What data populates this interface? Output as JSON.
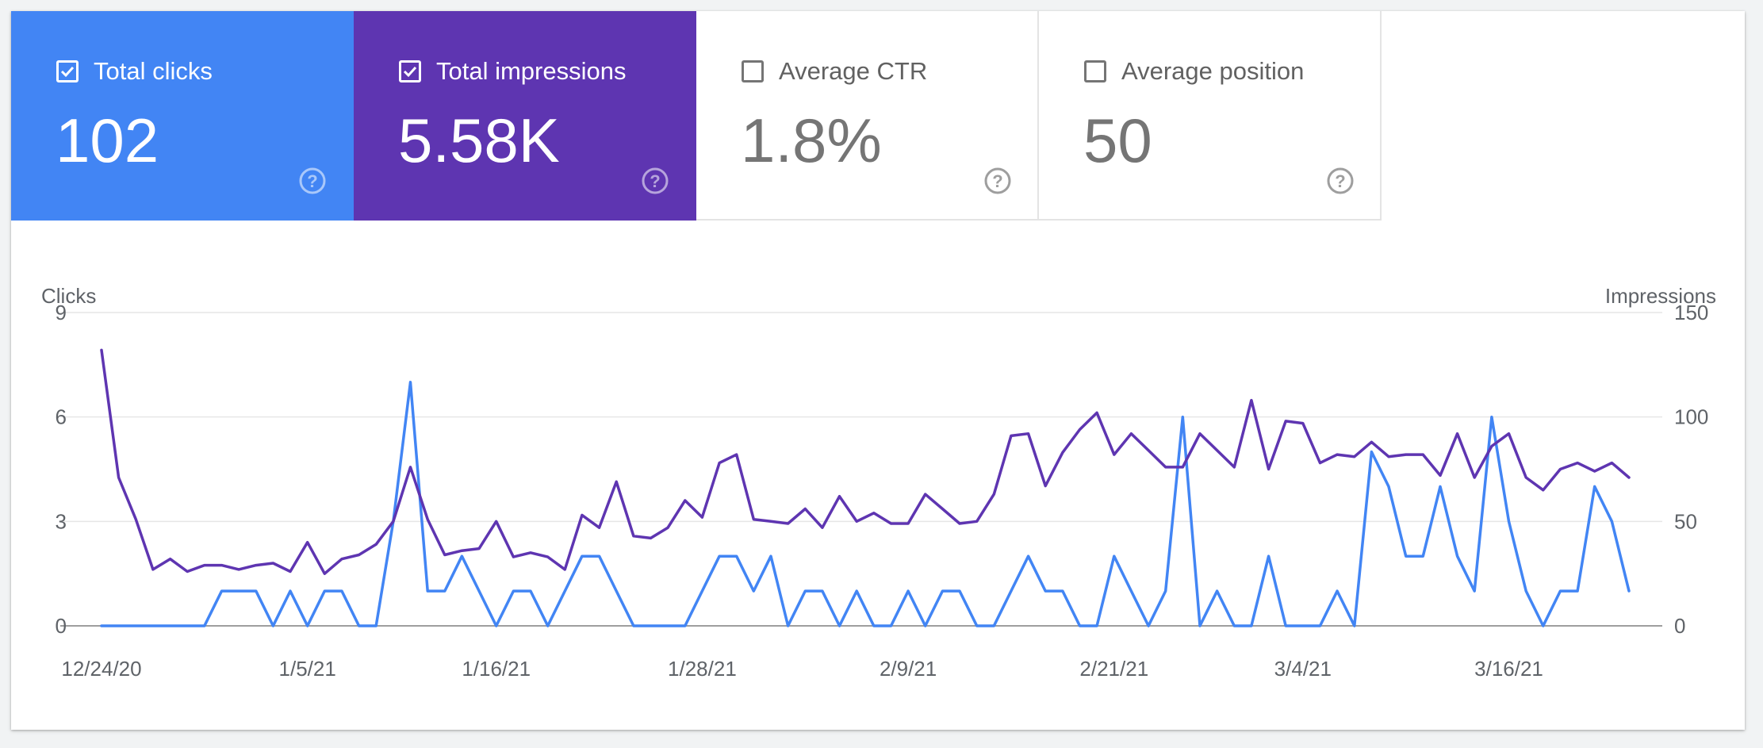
{
  "metrics": [
    {
      "label": "Total clicks",
      "value": "102",
      "checked": true
    },
    {
      "label": "Total impressions",
      "value": "5.58K",
      "checked": true
    },
    {
      "label": "Average CTR",
      "value": "1.8%",
      "checked": false
    },
    {
      "label": "Average position",
      "value": "50",
      "checked": false
    }
  ],
  "colors": {
    "clicks": "#4285f4",
    "impressions": "#5e35b1",
    "grid": "#e6e6e6",
    "baseline": "#9e9e9e"
  },
  "chart_data": {
    "type": "line",
    "grid": true,
    "y_left": {
      "label": "Clicks",
      "range": [
        0,
        9
      ],
      "ticks": [
        0,
        3,
        6,
        9
      ]
    },
    "y_right": {
      "label": "Impressions",
      "range": [
        0,
        150
      ],
      "ticks": [
        0,
        50,
        100,
        150
      ]
    },
    "x_tick_labels": [
      "12/24/20",
      "1/5/21",
      "1/16/21",
      "1/28/21",
      "2/9/21",
      "2/21/21",
      "3/4/21",
      "3/16/21"
    ],
    "x_tick_index": [
      0,
      12,
      23,
      35,
      47,
      59,
      70,
      82
    ],
    "series": [
      {
        "name": "Clicks",
        "axis": "left",
        "values": [
          0,
          0,
          0,
          0,
          0,
          0,
          0,
          1,
          1,
          1,
          0,
          1,
          0,
          1,
          1,
          0,
          0,
          3,
          7,
          1,
          1,
          2,
          1,
          0,
          1,
          1,
          0,
          1,
          2,
          2,
          1,
          0,
          0,
          0,
          0,
          1,
          2,
          2,
          1,
          2,
          0,
          1,
          1,
          0,
          1,
          0,
          0,
          1,
          0,
          1,
          1,
          0,
          0,
          1,
          2,
          1,
          1,
          0,
          0,
          2,
          1,
          0,
          1,
          6,
          0,
          1,
          0,
          0,
          2,
          0,
          0,
          0,
          1,
          0,
          5,
          4,
          2,
          2,
          4,
          2,
          1,
          6,
          3,
          1,
          0,
          1,
          1,
          4,
          3,
          1
        ]
      },
      {
        "name": "Impressions",
        "axis": "right",
        "values": [
          132,
          71,
          51,
          27,
          32,
          26,
          29,
          29,
          27,
          29,
          30,
          26,
          40,
          25,
          32,
          34,
          39,
          50,
          76,
          51,
          34,
          36,
          37,
          50,
          33,
          35,
          33,
          27,
          53,
          47,
          69,
          43,
          42,
          47,
          60,
          52,
          78,
          82,
          51,
          50,
          49,
          56,
          47,
          62,
          50,
          54,
          49,
          49,
          63,
          56,
          49,
          50,
          63,
          91,
          92,
          67,
          83,
          94,
          102,
          82,
          92,
          84,
          76,
          76,
          92,
          84,
          76,
          108,
          75,
          98,
          97,
          78,
          82,
          81,
          88,
          81,
          82,
          82,
          72,
          92,
          71,
          86,
          92,
          71,
          65,
          75,
          78,
          74,
          78,
          71
        ]
      }
    ]
  }
}
